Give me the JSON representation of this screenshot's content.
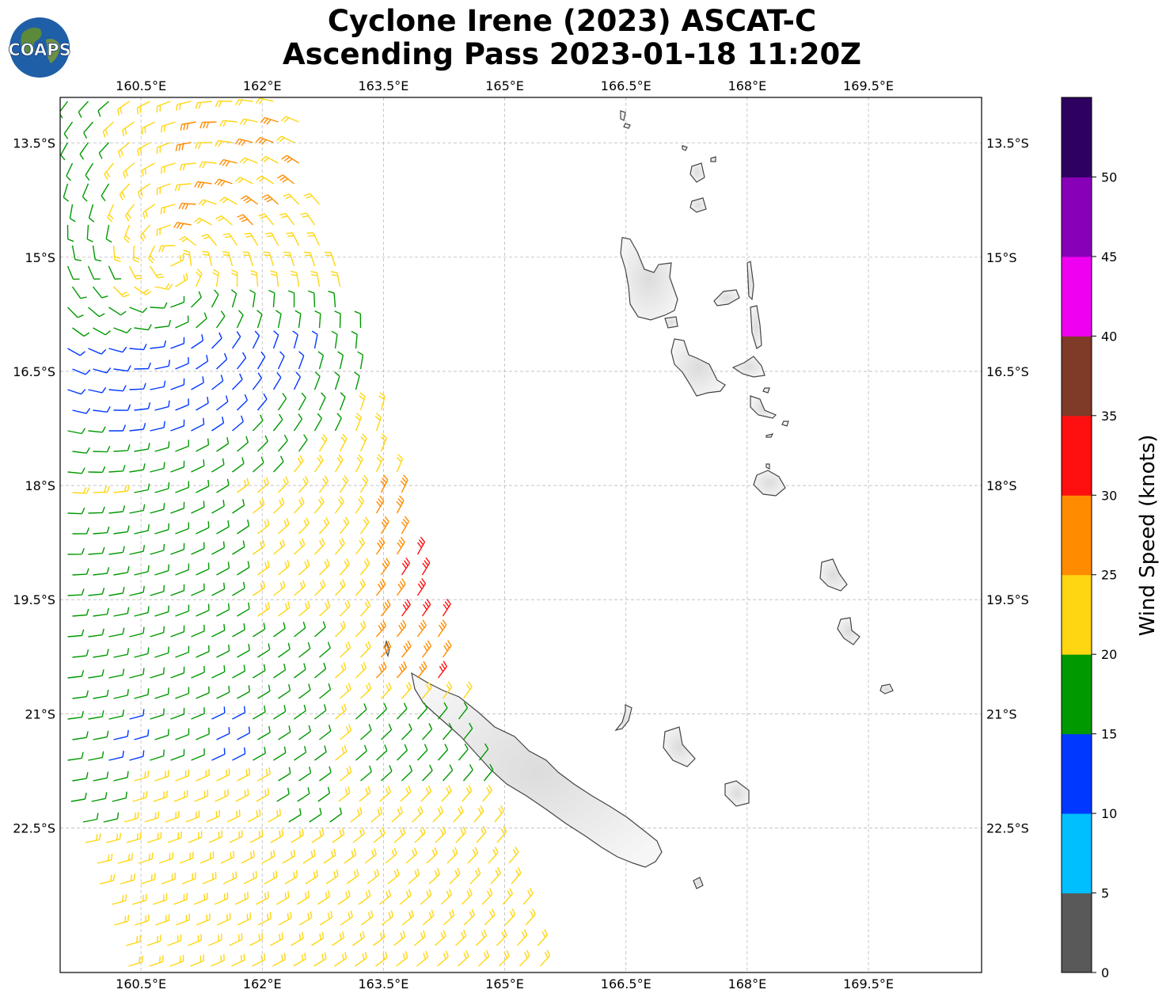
{
  "title": {
    "line1": "Cyclone Irene (2023) ASCAT-C",
    "line2": "Ascending Pass 2023-01-18 11:20Z"
  },
  "logo": {
    "text": "COAPS",
    "icon": "globe-logo-icon"
  },
  "map": {
    "lon_range": [
      159.5,
      170.9
    ],
    "lat_range": [
      -24.4,
      -12.9
    ],
    "lon_ticks": [
      "160.5°E",
      "162°E",
      "163.5°E",
      "165°E",
      "166.5°E",
      "168°E",
      "169.5°E"
    ],
    "lat_ticks": [
      "13.5°S",
      "15°S",
      "16.5°S",
      "18°S",
      "19.5°S",
      "21°S",
      "22.5°S"
    ],
    "grid": true,
    "land_color": "#efefef",
    "coast_color": "#444444",
    "wind_barbs": "ASCAT-C swath wind barbs colored by speed"
  },
  "colorbar": {
    "title": "Wind Speed (knots)",
    "ticks": [
      "0",
      "5",
      "10",
      "15",
      "20",
      "25",
      "30",
      "35",
      "40",
      "45",
      "50"
    ],
    "colors": [
      "#595959",
      "#00bfff",
      "#0038ff",
      "#009900",
      "#ffd612",
      "#ff8c00",
      "#ff1010",
      "#7f3a28",
      "#f000f0",
      "#8800b8",
      "#2e0060"
    ]
  }
}
